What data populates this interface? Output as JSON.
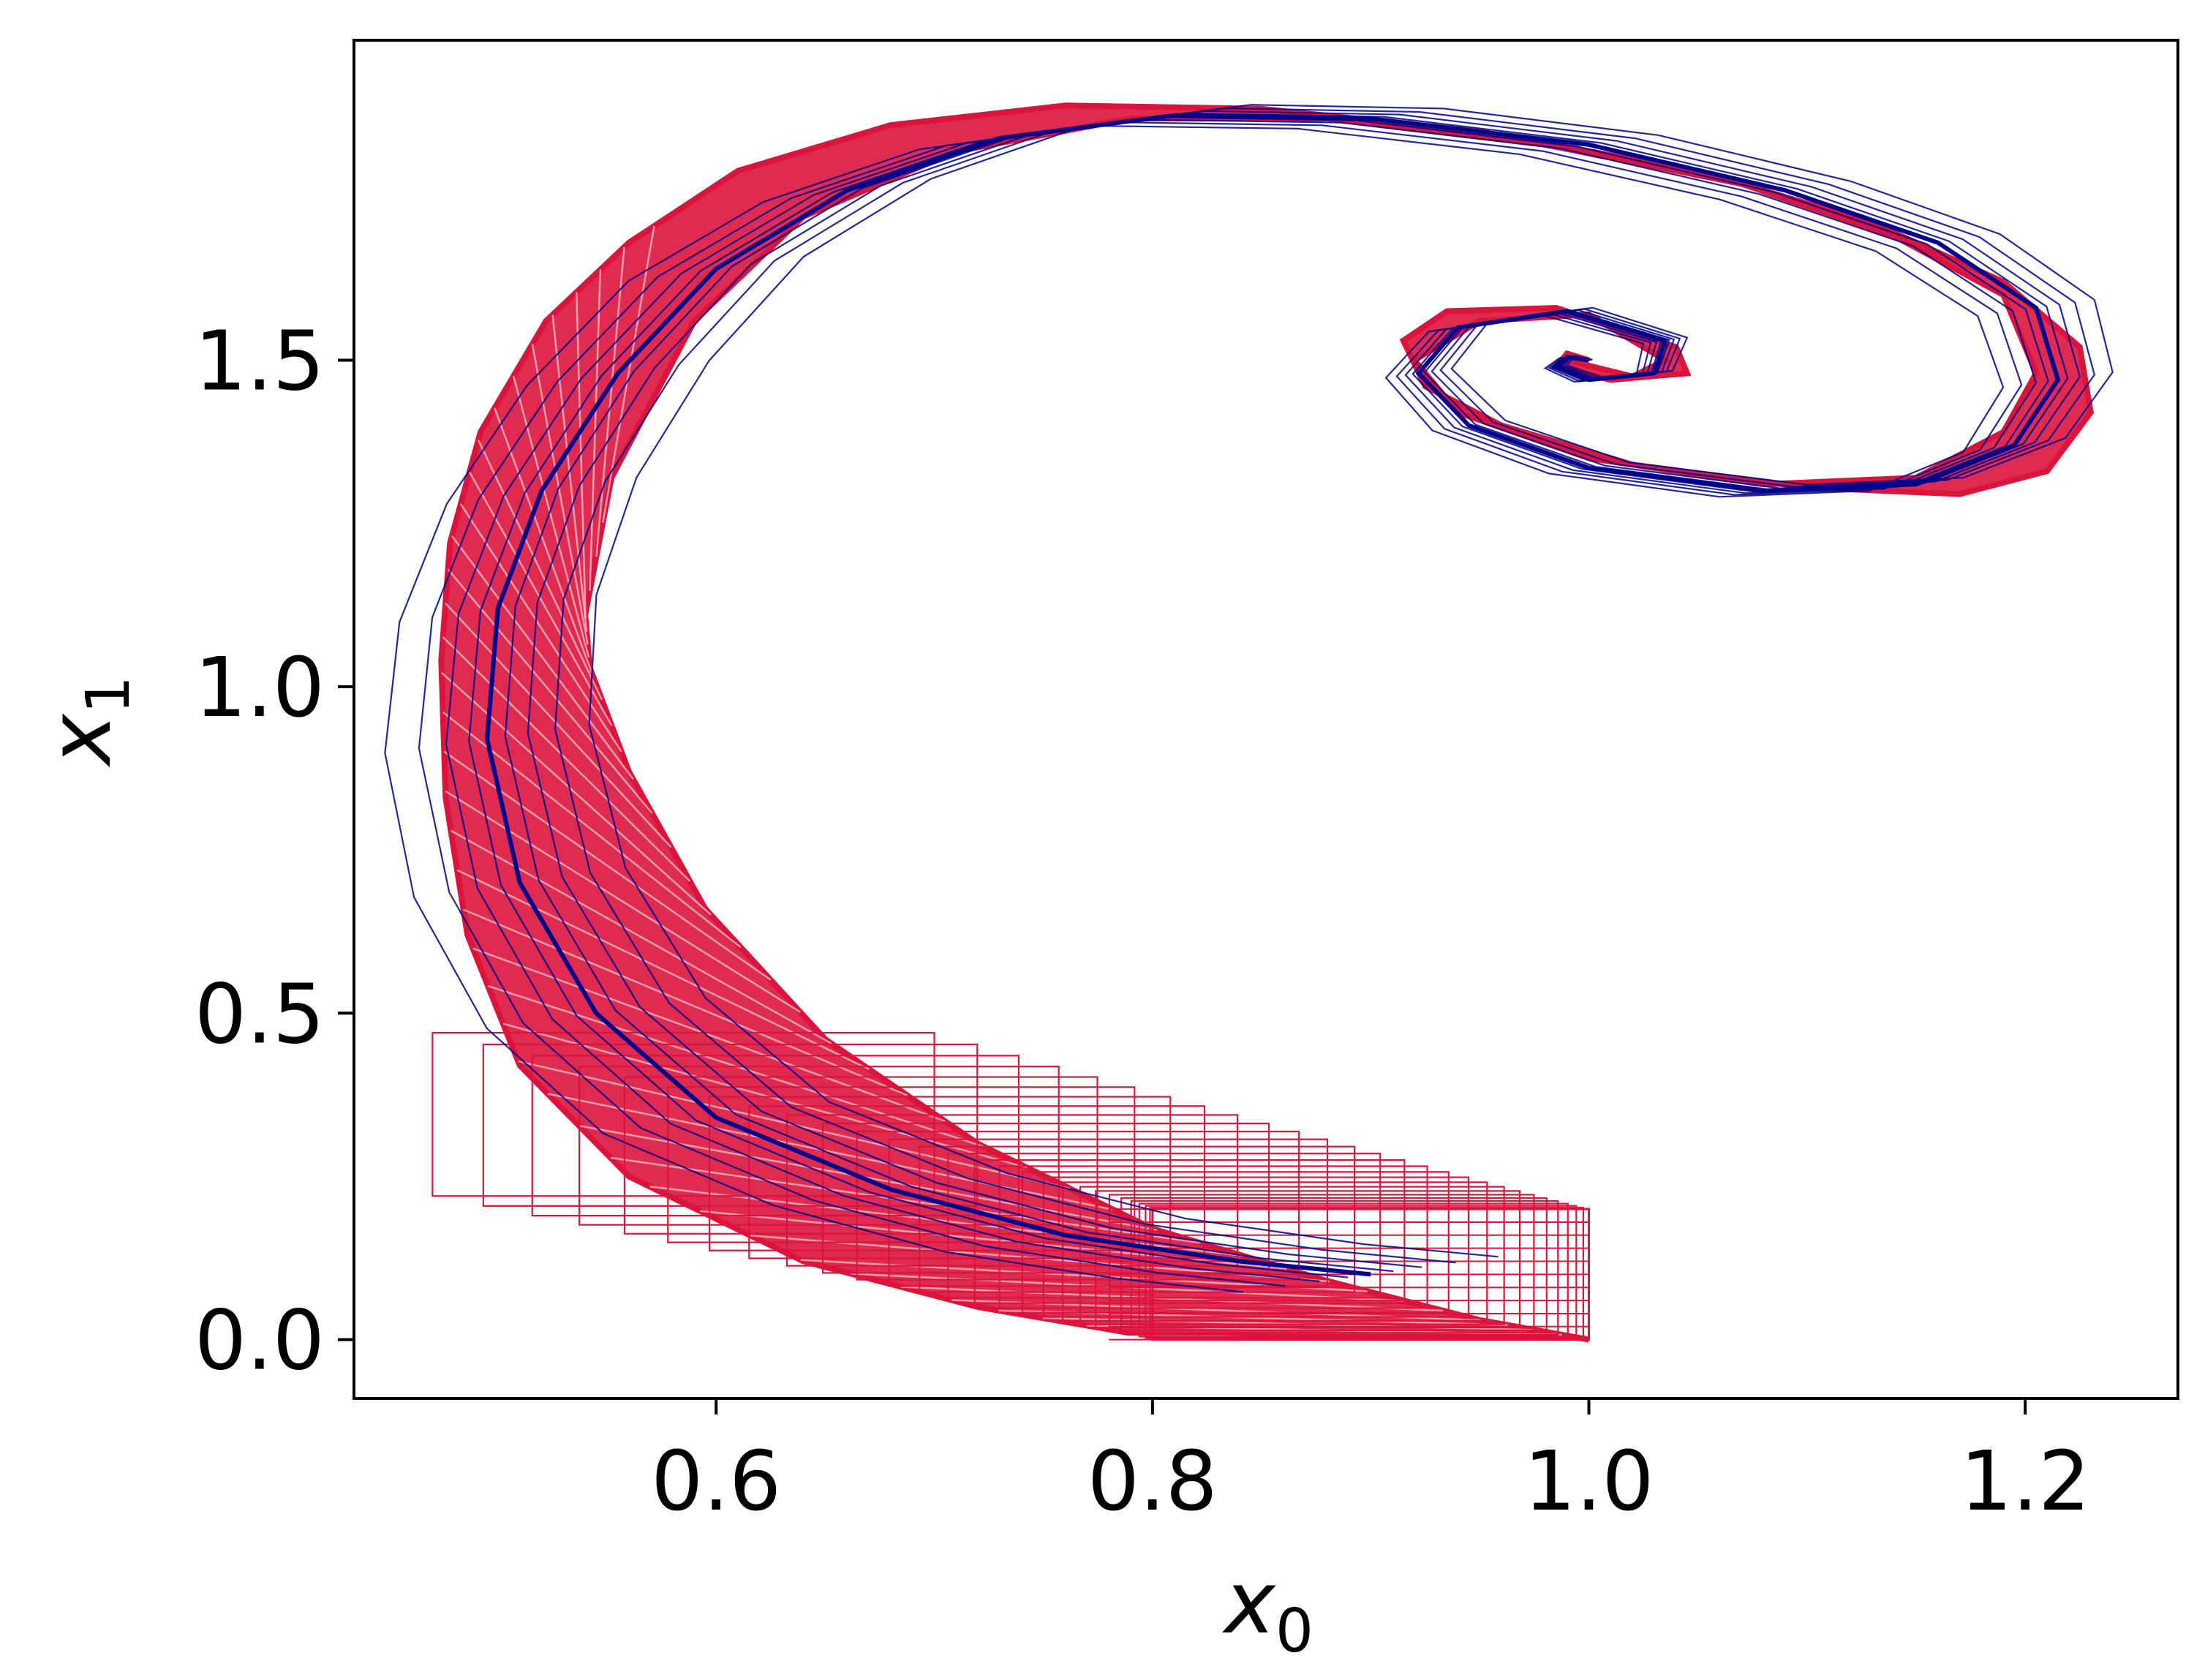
{
  "chart_data": {
    "type": "line",
    "title": "",
    "xlabel": "x",
    "xlabel_subscript": "0",
    "ylabel": "x",
    "ylabel_subscript": "1",
    "xlim": [
      0.434,
      1.27
    ],
    "ylim": [
      -0.09,
      1.99
    ],
    "x_ticks": [
      0.6,
      0.8,
      1.0,
      1.2
    ],
    "y_ticks": [
      0.0,
      0.5,
      1.0,
      1.5
    ],
    "x_tick_labels": [
      "0.6",
      "0.8",
      "1.0",
      "1.2"
    ],
    "y_tick_labels": [
      "0.0",
      "0.5",
      "1.0",
      "1.5"
    ],
    "grid": false,
    "legend": "none",
    "colors": {
      "envelope": "#DC143C",
      "trajectories": "#00008B"
    },
    "series": [
      {
        "role": "reachable-set-envelope",
        "color": "#DC143C",
        "initial_box": {
          "x": [
            0.8,
            1.0
          ],
          "y": [
            0.0,
            0.2
          ]
        },
        "outer_boundary": {
          "x": [
            0.79,
            0.72,
            0.64,
            0.56,
            0.51,
            0.486,
            0.476,
            0.474,
            0.478,
            0.492,
            0.522,
            0.56,
            0.61,
            0.68,
            0.76,
            0.85,
            0.95,
            1.05,
            1.13,
            1.19,
            1.225,
            1.23,
            1.21,
            1.17,
            1.1,
            1.02,
            0.96,
            0.925,
            0.915,
            0.935,
            0.985,
            1.04,
            1.045,
            1.01,
            0.985,
            0.99,
            1.0
          ],
          "y": [
            0.01,
            0.05,
            0.12,
            0.25,
            0.42,
            0.62,
            0.83,
            1.04,
            1.22,
            1.39,
            1.56,
            1.68,
            1.79,
            1.86,
            1.89,
            1.885,
            1.85,
            1.79,
            1.71,
            1.62,
            1.52,
            1.42,
            1.33,
            1.295,
            1.305,
            1.34,
            1.4,
            1.46,
            1.53,
            1.575,
            1.58,
            1.52,
            1.48,
            1.47,
            1.49,
            1.51,
            1.5
          ]
        },
        "inner_boundary": {
          "x": [
            1.0,
            0.95,
            0.88,
            0.8,
            0.72,
            0.65,
            0.595,
            0.56,
            0.542,
            0.54,
            0.552,
            0.59,
            0.64,
            0.71,
            0.79,
            0.88,
            0.98,
            1.07,
            1.14,
            1.19,
            1.205,
            1.19,
            1.15,
            1.08,
            1.0,
            0.94,
            0.92,
            0.95,
            1.0,
            1.035,
            1.02,
            0.99
          ],
          "y": [
            0.0,
            0.03,
            0.09,
            0.17,
            0.3,
            0.46,
            0.66,
            0.87,
            1.03,
            1.11,
            1.32,
            1.56,
            1.72,
            1.82,
            1.87,
            1.87,
            1.83,
            1.77,
            1.69,
            1.6,
            1.48,
            1.39,
            1.32,
            1.31,
            1.35,
            1.42,
            1.5,
            1.56,
            1.57,
            1.5,
            1.475,
            1.5
          ]
        }
      },
      {
        "role": "sample-trajectory",
        "color": "#00008B",
        "x": [
          0.9,
          0.84,
          0.76,
          0.68,
          0.6,
          0.545,
          0.51,
          0.495,
          0.5,
          0.52,
          0.555,
          0.6,
          0.66,
          0.73,
          0.81,
          0.9,
          1.0,
          1.09,
          1.16,
          1.205,
          1.215,
          1.195,
          1.15,
          1.08,
          1.0,
          0.945,
          0.922,
          0.94,
          0.99,
          1.035,
          1.03,
          1.0,
          0.985,
          0.99,
          1.0
        ],
        "y": [
          0.1,
          0.12,
          0.16,
          0.23,
          0.34,
          0.5,
          0.7,
          0.92,
          1.12,
          1.3,
          1.48,
          1.64,
          1.76,
          1.84,
          1.875,
          1.87,
          1.83,
          1.76,
          1.68,
          1.58,
          1.47,
          1.37,
          1.31,
          1.3,
          1.335,
          1.4,
          1.48,
          1.55,
          1.575,
          1.53,
          1.48,
          1.47,
          1.49,
          1.505,
          1.5
        ]
      }
    ]
  }
}
